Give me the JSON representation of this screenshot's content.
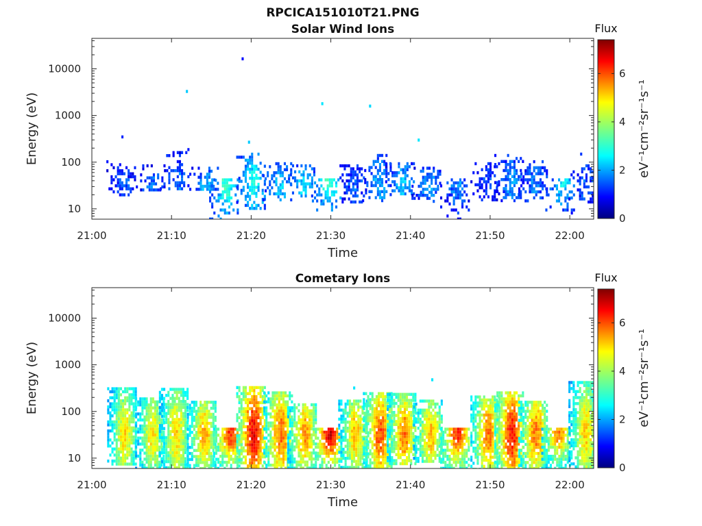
{
  "figure_title": "RPCICA151010T21.PNG",
  "chart_data": [
    {
      "type": "heatmap",
      "title": "Solar Wind Ions",
      "xlabel": "Time",
      "ylabel": "Energy (eV)",
      "x_ticks": [
        "21:00",
        "21:10",
        "21:20",
        "21:30",
        "21:40",
        "21:50",
        "22:00"
      ],
      "x_tick_minutes": [
        0,
        10,
        20,
        30,
        40,
        50,
        60
      ],
      "xlim_minutes": [
        0,
        63
      ],
      "y_ticks": [
        "10",
        "100",
        "1000",
        "10000"
      ],
      "y_tick_values": [
        10,
        100,
        1000,
        10000
      ],
      "ylim": [
        6,
        45000
      ],
      "y_scale": "log",
      "colorbar": {
        "label": "Flux",
        "units": "eV⁻¹cm⁻²sr⁻¹s⁻¹",
        "ticks": [
          "0",
          "2",
          "4",
          "6"
        ],
        "tick_values": [
          0,
          2,
          4,
          6
        ],
        "range": [
          0,
          7.4
        ],
        "colormap": "jet"
      },
      "bursts": [
        {
          "t": 3.9,
          "emin": 20,
          "emax": 110,
          "peak": 1.5
        },
        {
          "t": 7.6,
          "emin": 25,
          "emax": 90,
          "peak": 1.8
        },
        {
          "t": 10.6,
          "emin": 25,
          "emax": 200,
          "peak": 1.8
        },
        {
          "t": 14.3,
          "emin": 25,
          "emax": 80,
          "peak": 2.3
        },
        {
          "t": 16.8,
          "emin": 6,
          "emax": 45,
          "peak": 3.2
        },
        {
          "t": 20.2,
          "emin": 10,
          "emax": 160,
          "peak": 2.8
        },
        {
          "t": 23.5,
          "emin": 15,
          "emax": 100,
          "peak": 2.4
        },
        {
          "t": 26.4,
          "emin": 20,
          "emax": 90,
          "peak": 2.6
        },
        {
          "t": 29.7,
          "emin": 10,
          "emax": 45,
          "peak": 3.3
        },
        {
          "t": 32.9,
          "emin": 15,
          "emax": 90,
          "peak": 1.6
        },
        {
          "t": 36.0,
          "emin": 15,
          "emax": 150,
          "peak": 2.2
        },
        {
          "t": 38.9,
          "emin": 20,
          "emax": 100,
          "peak": 2.4
        },
        {
          "t": 42.2,
          "emin": 15,
          "emax": 80,
          "peak": 2.1
        },
        {
          "t": 45.8,
          "emin": 6,
          "emax": 45,
          "peak": 1.9
        },
        {
          "t": 49.6,
          "emin": 15,
          "emax": 100,
          "peak": 1.4
        },
        {
          "t": 52.6,
          "emin": 15,
          "emax": 150,
          "peak": 2.0
        },
        {
          "t": 55.6,
          "emin": 15,
          "emax": 110,
          "peak": 1.8
        },
        {
          "t": 59.0,
          "emin": 8,
          "emax": 45,
          "peak": 2.6
        },
        {
          "t": 61.9,
          "emin": 15,
          "emax": 90,
          "peak": 1.6
        }
      ],
      "scatter": [
        {
          "t": 18.8,
          "e": 16500,
          "v": 1.0
        },
        {
          "t": 11.8,
          "e": 3300,
          "v": 2.4
        },
        {
          "t": 28.8,
          "e": 1800,
          "v": 2.6
        },
        {
          "t": 34.8,
          "e": 1600,
          "v": 2.5
        },
        {
          "t": 3.7,
          "e": 350,
          "v": 1.2
        },
        {
          "t": 19.6,
          "e": 270,
          "v": 2.4
        },
        {
          "t": 40.9,
          "e": 300,
          "v": 2.6
        },
        {
          "t": 61.3,
          "e": 150,
          "v": 1.3
        }
      ]
    },
    {
      "type": "heatmap",
      "title": "Cometary Ions",
      "xlabel": "Time",
      "ylabel": "Energy (eV)",
      "x_ticks": [
        "21:00",
        "21:10",
        "21:20",
        "21:30",
        "21:40",
        "21:50",
        "22:00"
      ],
      "x_tick_minutes": [
        0,
        10,
        20,
        30,
        40,
        50,
        60
      ],
      "xlim_minutes": [
        0,
        63
      ],
      "y_ticks": [
        "10",
        "100",
        "1000",
        "10000"
      ],
      "y_tick_values": [
        10,
        100,
        1000,
        10000
      ],
      "ylim": [
        6,
        45000
      ],
      "y_scale": "log",
      "colorbar": {
        "label": "Flux",
        "units": "eV⁻¹cm⁻²sr⁻¹s⁻¹",
        "ticks": [
          "0",
          "2",
          "4",
          "6"
        ],
        "tick_values": [
          0,
          2,
          4,
          6
        ],
        "range": [
          0,
          7.4
        ],
        "colormap": "jet"
      },
      "bursts": [
        {
          "t": 4.0,
          "emin": 8,
          "emax": 330,
          "peak": 4.8
        },
        {
          "t": 7.5,
          "emin": 6,
          "emax": 200,
          "peak": 4.8
        },
        {
          "t": 10.5,
          "emin": 6,
          "emax": 320,
          "peak": 4.9
        },
        {
          "t": 14.0,
          "emin": 6,
          "emax": 170,
          "peak": 5.2
        },
        {
          "t": 17.3,
          "emin": 6,
          "emax": 45,
          "peak": 6.2
        },
        {
          "t": 20.2,
          "emin": 6,
          "emax": 350,
          "peak": 6.6
        },
        {
          "t": 23.6,
          "emin": 6,
          "emax": 270,
          "peak": 5.7
        },
        {
          "t": 26.6,
          "emin": 6,
          "emax": 150,
          "peak": 5.4
        },
        {
          "t": 29.8,
          "emin": 6,
          "emax": 45,
          "peak": 6.8
        },
        {
          "t": 33.0,
          "emin": 6,
          "emax": 180,
          "peak": 5.1
        },
        {
          "t": 36.1,
          "emin": 6,
          "emax": 260,
          "peak": 5.9
        },
        {
          "t": 39.1,
          "emin": 8,
          "emax": 250,
          "peak": 5.6
        },
        {
          "t": 42.4,
          "emin": 8,
          "emax": 180,
          "peak": 5.1
        },
        {
          "t": 45.8,
          "emin": 6,
          "emax": 45,
          "peak": 6.3
        },
        {
          "t": 49.6,
          "emin": 6,
          "emax": 220,
          "peak": 5.6
        },
        {
          "t": 52.6,
          "emin": 6,
          "emax": 270,
          "peak": 6.4
        },
        {
          "t": 55.6,
          "emin": 6,
          "emax": 170,
          "peak": 5.6
        },
        {
          "t": 58.5,
          "emin": 6,
          "emax": 45,
          "peak": 5.5
        },
        {
          "t": 61.9,
          "emin": 6,
          "emax": 450,
          "peak": 4.9
        }
      ],
      "scatter": [
        {
          "t": 42.6,
          "e": 480,
          "v": 2.6
        },
        {
          "t": 32.8,
          "e": 320,
          "v": 2.6
        }
      ]
    }
  ]
}
